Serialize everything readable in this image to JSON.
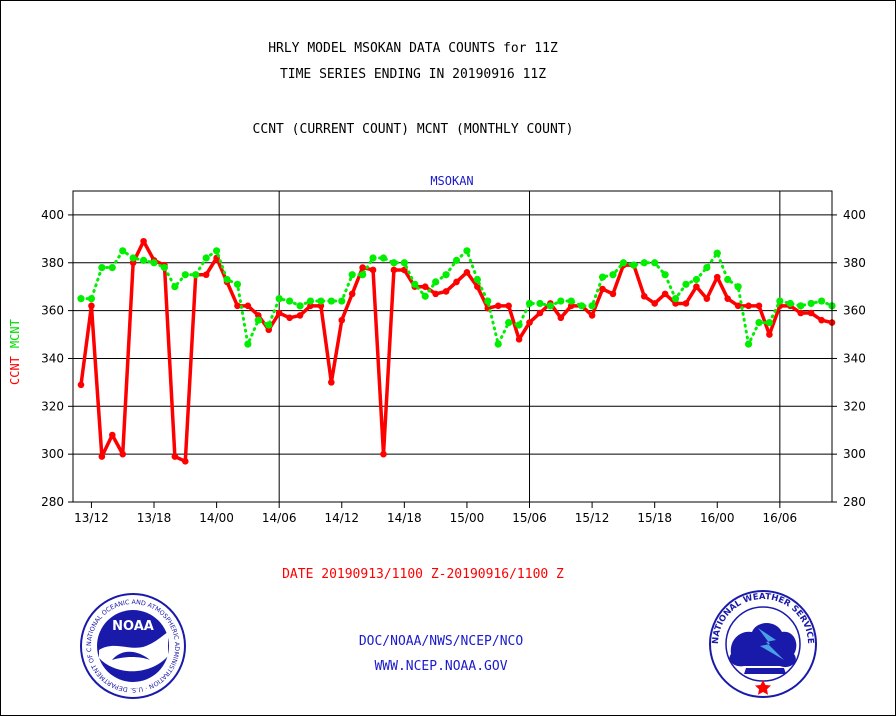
{
  "header": {
    "title_line1": "HRLY MODEL MSOKAN DATA COUNTS for 11Z",
    "title_line2": "TIME SERIES ENDING IN 20190916 11Z",
    "subtitle": "CCNT (CURRENT COUNT) MCNT (MONTHLY COUNT)"
  },
  "footer": {
    "date_range": "DATE 20190913/1100 Z-20190916/1100 Z",
    "org_path": "DOC/NOAA/NWS/NCEP/NCO",
    "website": "WWW.NCEP.NOAA.GOV"
  },
  "logos": {
    "noaa_text": "NOAA",
    "noaa_ring": "NATIONAL OCEANIC AND ATMOSPHERIC ADMINISTRATION · U.S. DEPARTMENT OF COMMERCE",
    "nws_ring": "NATIONAL WEATHER SERVICE"
  },
  "colors": {
    "ccnt": "#ff0000",
    "mcnt": "#00ee00",
    "title": "#000000",
    "station": "#1a1acc"
  },
  "chart_data": {
    "type": "line",
    "title": "MSOKAN",
    "xlabel": "",
    "ylabel": "",
    "ylabel_series": [
      "CCNT",
      "MCNT"
    ],
    "ylim": [
      280,
      410
    ],
    "yticks": [
      280,
      300,
      320,
      340,
      360,
      380,
      400
    ],
    "x_start": "13/11",
    "x_tick_labels": [
      "13/12",
      "13/18",
      "14/00",
      "14/06",
      "14/12",
      "14/18",
      "15/00",
      "15/06",
      "15/12",
      "15/18",
      "16/00",
      "16/06"
    ],
    "x_tick_hours": [
      1,
      7,
      13,
      19,
      25,
      31,
      37,
      43,
      49,
      55,
      61,
      67
    ],
    "day_boundaries_hours": [
      19,
      43,
      67
    ],
    "grid": true,
    "series": [
      {
        "name": "CCNT",
        "style": "solid",
        "values": [
          329,
          362,
          299,
          308,
          300,
          380,
          389,
          381,
          379,
          299,
          297,
          375,
          375,
          382,
          372,
          362,
          362,
          358,
          352,
          359,
          357,
          358,
          362,
          362,
          330,
          356,
          367,
          378,
          377,
          300,
          377,
          377,
          370,
          370,
          367,
          368,
          372,
          376,
          370,
          361,
          362,
          362,
          348,
          355,
          359,
          363,
          357,
          362,
          362,
          358,
          369,
          367,
          379,
          379,
          366,
          363,
          367,
          363,
          363,
          370,
          365,
          374,
          365,
          362,
          362,
          362,
          350,
          362,
          362,
          359,
          359,
          356,
          355
        ]
      },
      {
        "name": "MCNT",
        "style": "dotted",
        "values": [
          365,
          365,
          378,
          378,
          385,
          382,
          381,
          380,
          378,
          370,
          375,
          375,
          382,
          385,
          373,
          371,
          346,
          356,
          354,
          365,
          364,
          362,
          364,
          364,
          364,
          364,
          375,
          375,
          382,
          382,
          380,
          380,
          371,
          366,
          372,
          375,
          381,
          385,
          373,
          364,
          346,
          355,
          354,
          363,
          363,
          362,
          364,
          364,
          362,
          362,
          374,
          375,
          380,
          379,
          380,
          380,
          375,
          365,
          371,
          373,
          378,
          384,
          373,
          370,
          346,
          355,
          355,
          364,
          363,
          362,
          363,
          364,
          362
        ]
      }
    ]
  }
}
